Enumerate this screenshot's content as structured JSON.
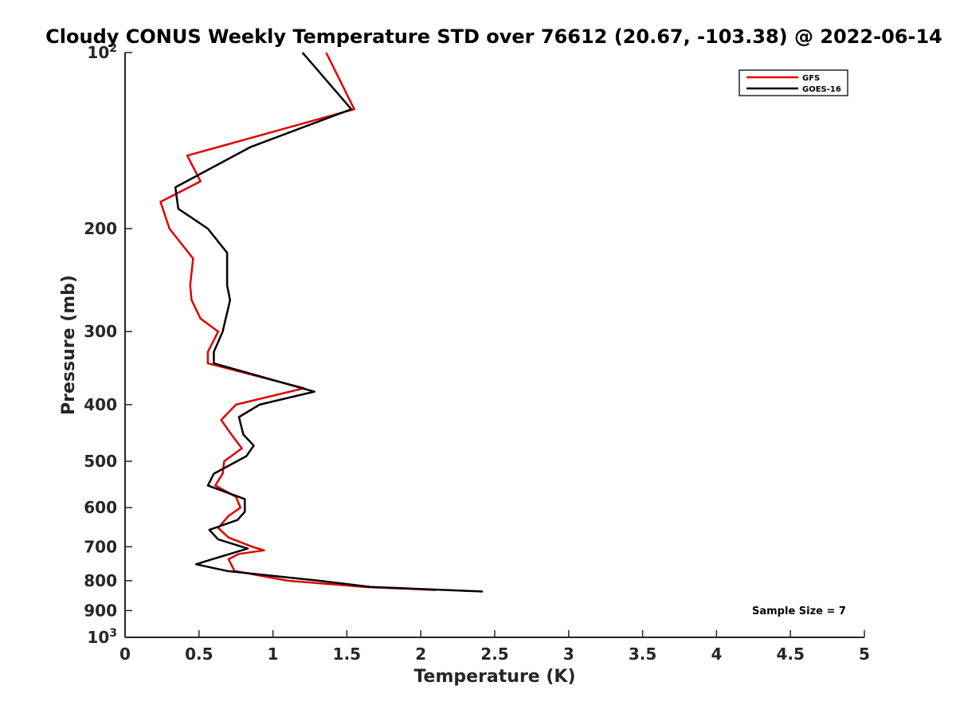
{
  "chart_data": {
    "type": "line",
    "title": "Cloudy CONUS Weekly Temperature STD over 76612 (20.67, -103.38) @ 2022-06-14",
    "xlabel": "Temperature (K)",
    "ylabel": "Pressure (mb)",
    "xlim": [
      0,
      5
    ],
    "ylim": [
      100,
      1000
    ],
    "yscale": "log",
    "y_reversed": true,
    "grid": false,
    "xticks": [
      0,
      0.5,
      1,
      1.5,
      2,
      2.5,
      3,
      3.5,
      4,
      4.5,
      5
    ],
    "xtick_labels": [
      "0",
      "0.5",
      "1",
      "1.5",
      "2",
      "2.5",
      "3",
      "3.5",
      "4",
      "4.5",
      "5"
    ],
    "yticks": [
      {
        "value": 100,
        "base": "10",
        "exp": "2"
      },
      {
        "value": 200,
        "label": "200"
      },
      {
        "value": 300,
        "label": "300"
      },
      {
        "value": 400,
        "label": "400"
      },
      {
        "value": 500,
        "label": "500"
      },
      {
        "value": 600,
        "label": "600"
      },
      {
        "value": 700,
        "label": "700"
      },
      {
        "value": 800,
        "label": "800"
      },
      {
        "value": 900,
        "label": "900"
      },
      {
        "value": 1000,
        "base": "10",
        "exp": "3"
      }
    ],
    "legend": {
      "position": "top-right",
      "entries": [
        "GFS",
        "GOES-16"
      ]
    },
    "annotation": "Sample Size = 7",
    "series": [
      {
        "name": "GFS",
        "color": "#e00000",
        "points": [
          [
            1.36,
            100
          ],
          [
            1.55,
            125
          ],
          [
            0.42,
            150
          ],
          [
            0.51,
            166
          ],
          [
            0.24,
            180
          ],
          [
            0.3,
            200
          ],
          [
            0.46,
            225
          ],
          [
            0.44,
            250
          ],
          [
            0.45,
            265
          ],
          [
            0.51,
            285
          ],
          [
            0.63,
            300
          ],
          [
            0.56,
            325
          ],
          [
            0.56,
            340
          ],
          [
            1.21,
            375
          ],
          [
            0.75,
            400
          ],
          [
            0.65,
            425
          ],
          [
            0.72,
            450
          ],
          [
            0.79,
            475
          ],
          [
            0.67,
            500
          ],
          [
            0.66,
            525
          ],
          [
            0.61,
            550
          ],
          [
            0.75,
            575
          ],
          [
            0.78,
            600
          ],
          [
            0.7,
            620
          ],
          [
            0.63,
            650
          ],
          [
            0.7,
            675
          ],
          [
            0.86,
            700
          ],
          [
            0.94,
            710
          ],
          [
            0.77,
            720
          ],
          [
            0.7,
            735
          ],
          [
            0.74,
            770
          ],
          [
            1.1,
            800
          ],
          [
            1.62,
            820
          ],
          [
            2.1,
            830
          ]
        ]
      },
      {
        "name": "GOES-16",
        "color": "#000000",
        "points": [
          [
            1.2,
            100
          ],
          [
            1.53,
            125
          ],
          [
            0.85,
            145
          ],
          [
            0.34,
            170
          ],
          [
            0.36,
            185
          ],
          [
            0.56,
            200
          ],
          [
            0.69,
            220
          ],
          [
            0.69,
            250
          ],
          [
            0.71,
            265
          ],
          [
            0.66,
            300
          ],
          [
            0.6,
            325
          ],
          [
            0.6,
            340
          ],
          [
            1.28,
            380
          ],
          [
            0.91,
            400
          ],
          [
            0.77,
            420
          ],
          [
            0.8,
            450
          ],
          [
            0.87,
            470
          ],
          [
            0.82,
            490
          ],
          [
            0.6,
            525
          ],
          [
            0.56,
            550
          ],
          [
            0.81,
            580
          ],
          [
            0.81,
            610
          ],
          [
            0.76,
            630
          ],
          [
            0.57,
            655
          ],
          [
            0.63,
            680
          ],
          [
            0.83,
            705
          ],
          [
            0.59,
            735
          ],
          [
            0.48,
            750
          ],
          [
            0.69,
            770
          ],
          [
            1.31,
            800
          ],
          [
            1.66,
            820
          ],
          [
            2.42,
            835
          ]
        ]
      }
    ]
  }
}
